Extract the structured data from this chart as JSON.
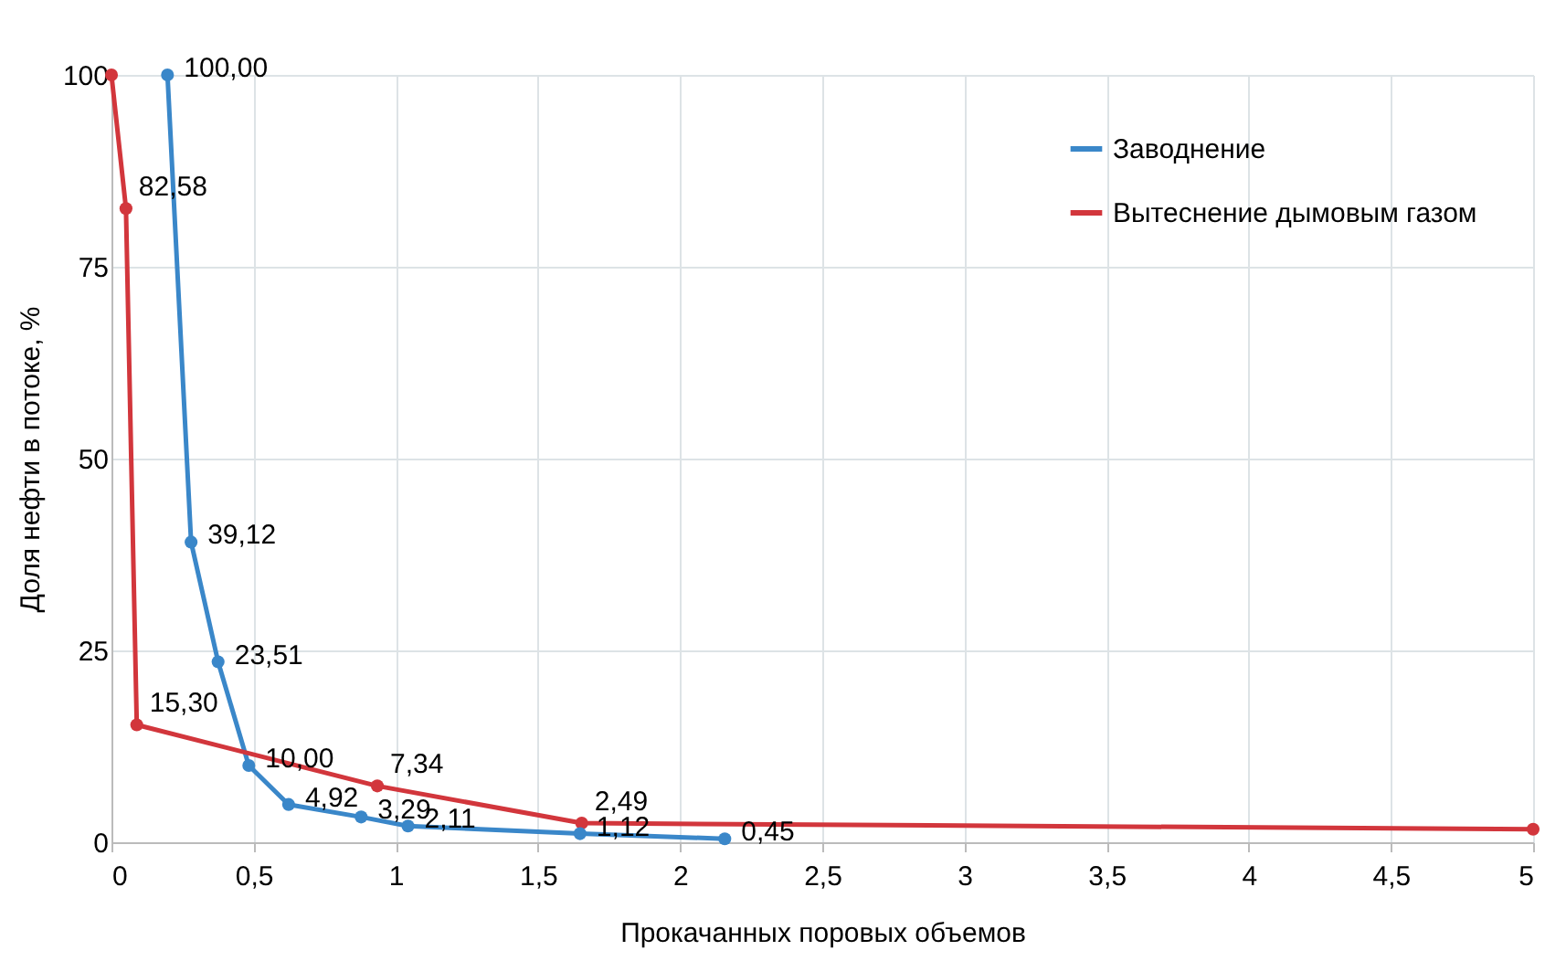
{
  "chart_data": {
    "type": "line",
    "xlabel": "Прокачанных поровых объемов",
    "ylabel": "Доля нефти в потоке, %",
    "xlim": [
      0,
      5
    ],
    "xticks": [
      {
        "value": 0,
        "label": "0"
      },
      {
        "value": 0.5,
        "label": "0,5"
      },
      {
        "value": 1,
        "label": "1"
      },
      {
        "value": 1.5,
        "label": "1,5"
      },
      {
        "value": 2,
        "label": "2"
      },
      {
        "value": 2.5,
        "label": "2,5"
      },
      {
        "value": 3,
        "label": "3"
      },
      {
        "value": 3.5,
        "label": "3,5"
      },
      {
        "value": 4,
        "label": "4"
      },
      {
        "value": 4.5,
        "label": "4,5"
      },
      {
        "value": 5,
        "label": "5"
      }
    ],
    "ylim": [
      0,
      100
    ],
    "yticks": [
      0,
      25,
      50,
      75,
      100
    ],
    "grid": true,
    "legend": "top right",
    "marker": "circle",
    "line_style": "solid",
    "series": [
      {
        "name": "Заводнение",
        "color": "#3a87c9",
        "x": [
          0.197,
          0.28,
          0.375,
          0.483,
          0.623,
          0.878,
          1.043,
          1.648,
          2.157
        ],
        "values": [
          100,
          39.12,
          23.51,
          10,
          4.92,
          3.29,
          2.11,
          1.12,
          0.45
        ],
        "value_labels": [
          "100,00",
          "39,12",
          "23,51",
          "10,00",
          "4,92",
          "3,29",
          "2,11",
          "1,12",
          "0,45"
        ]
      },
      {
        "name": "Вытеснение дымовым газом",
        "color": "#d2363c",
        "x": [
          0,
          0.051,
          0.089,
          0.935,
          1.654,
          5
        ],
        "values": [
          100,
          82.58,
          15.3,
          7.34,
          2.49,
          1.7
        ],
        "value_labels": [
          null,
          "82,58",
          "15,30",
          "7,34",
          "2,49",
          null
        ]
      }
    ]
  }
}
